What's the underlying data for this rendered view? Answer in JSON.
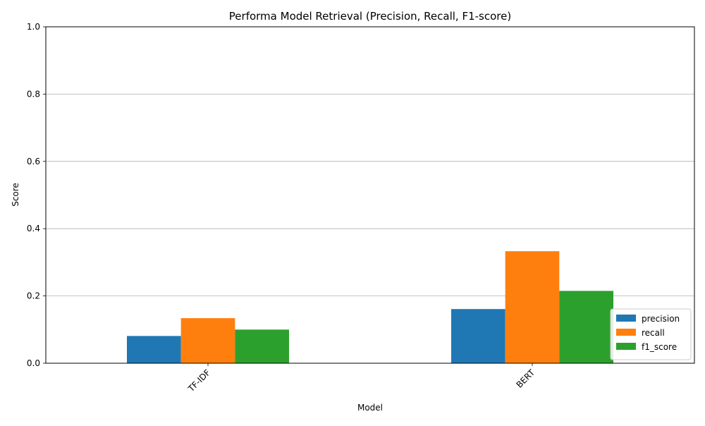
{
  "chart_data": {
    "type": "bar",
    "title": "Performa Model Retrieval (Precision, Recall, F1-score)",
    "xlabel": "Model",
    "ylabel": "Score",
    "categories": [
      "TF-IDF",
      "BERT"
    ],
    "series": [
      {
        "name": "precision",
        "color": "#1f77b4",
        "values": [
          0.081,
          0.161
        ]
      },
      {
        "name": "recall",
        "color": "#ff7f0e",
        "values": [
          0.134,
          0.333
        ]
      },
      {
        "name": "f1_score",
        "color": "#2ca02c",
        "values": [
          0.1,
          0.215
        ]
      }
    ],
    "ylim": [
      0,
      1.0
    ],
    "yticks": [
      "0.0",
      "0.2",
      "0.4",
      "0.6",
      "0.8",
      "1.0"
    ],
    "grid": "y",
    "legend_position": "lower right"
  }
}
